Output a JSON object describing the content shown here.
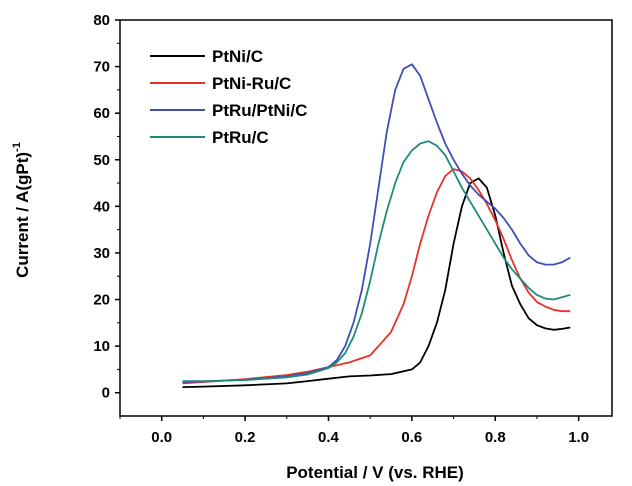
{
  "chart_data": {
    "type": "line",
    "xlabel": "Potential / V (vs. RHE)",
    "ylabel": "Current / A(gPt)",
    "ylabel_superscript": "-1",
    "xlim": [
      -0.1,
      1.08
    ],
    "ylim": [
      -5,
      80
    ],
    "xticks": [
      0.0,
      0.2,
      0.4,
      0.6,
      0.8,
      1.0
    ],
    "xtick_labels": [
      "0.0",
      "0.2",
      "0.4",
      "0.6",
      "0.8",
      "1.0"
    ],
    "yticks": [
      0,
      10,
      20,
      30,
      40,
      50,
      60,
      70,
      80
    ],
    "ytick_labels": [
      "0",
      "10",
      "20",
      "30",
      "40",
      "50",
      "60",
      "70",
      "80"
    ],
    "legend_position": "top-left",
    "grid": false,
    "series": [
      {
        "name": "PtNi/C",
        "color": "#000000",
        "x": [
          0.05,
          0.1,
          0.2,
          0.3,
          0.35,
          0.4,
          0.45,
          0.5,
          0.55,
          0.6,
          0.62,
          0.64,
          0.66,
          0.68,
          0.7,
          0.72,
          0.74,
          0.76,
          0.78,
          0.8,
          0.82,
          0.84,
          0.86,
          0.88,
          0.9,
          0.92,
          0.94,
          0.96,
          0.98
        ],
        "y": [
          1.2,
          1.3,
          1.6,
          2.0,
          2.5,
          3.0,
          3.5,
          3.7,
          4.0,
          5.0,
          6.5,
          10,
          15,
          22,
          32,
          40,
          45,
          46,
          44,
          38,
          30,
          23,
          19,
          16,
          14.5,
          13.8,
          13.5,
          13.7,
          14
        ]
      },
      {
        "name": "PtNi-Ru/C",
        "color": "#e8312a",
        "x": [
          0.05,
          0.1,
          0.2,
          0.3,
          0.35,
          0.4,
          0.45,
          0.5,
          0.55,
          0.58,
          0.6,
          0.62,
          0.64,
          0.66,
          0.68,
          0.7,
          0.72,
          0.74,
          0.76,
          0.78,
          0.8,
          0.82,
          0.84,
          0.86,
          0.88,
          0.9,
          0.92,
          0.94,
          0.96,
          0.98
        ],
        "y": [
          2.0,
          2.3,
          2.9,
          3.8,
          4.5,
          5.5,
          6.5,
          8.0,
          13,
          19,
          25,
          32,
          38,
          43,
          46.5,
          48,
          47.5,
          46,
          43.5,
          40.5,
          37,
          33,
          28.5,
          24.5,
          21.5,
          19.5,
          18.5,
          17.8,
          17.5,
          17.5
        ]
      },
      {
        "name": "PtRu/PtNi/C",
        "color": "#3f4fb5",
        "x": [
          0.05,
          0.1,
          0.2,
          0.3,
          0.35,
          0.4,
          0.42,
          0.44,
          0.46,
          0.48,
          0.5,
          0.52,
          0.54,
          0.56,
          0.58,
          0.6,
          0.62,
          0.64,
          0.66,
          0.68,
          0.7,
          0.72,
          0.74,
          0.76,
          0.78,
          0.8,
          0.82,
          0.84,
          0.86,
          0.88,
          0.9,
          0.92,
          0.94,
          0.96,
          0.98
        ],
        "y": [
          2.3,
          2.4,
          2.8,
          3.5,
          4.2,
          5.5,
          7,
          10,
          15,
          22,
          32,
          44,
          56,
          65,
          69.5,
          70.5,
          68,
          63,
          58,
          53.5,
          50,
          47,
          44.5,
          42.5,
          41,
          39.5,
          37.5,
          35,
          32,
          29.5,
          28,
          27.5,
          27.5,
          28,
          29
        ]
      },
      {
        "name": "PtRu/C",
        "color": "#1f8a7a",
        "x": [
          0.05,
          0.1,
          0.2,
          0.3,
          0.35,
          0.4,
          0.42,
          0.44,
          0.46,
          0.48,
          0.5,
          0.52,
          0.54,
          0.56,
          0.58,
          0.6,
          0.62,
          0.64,
          0.66,
          0.68,
          0.7,
          0.72,
          0.74,
          0.76,
          0.78,
          0.8,
          0.82,
          0.84,
          0.86,
          0.88,
          0.9,
          0.92,
          0.94,
          0.96,
          0.98
        ],
        "y": [
          2.5,
          2.5,
          2.7,
          3.3,
          3.9,
          5.3,
          6.5,
          8.5,
          12,
          17,
          24,
          32,
          39,
          45,
          49.5,
          52,
          53.5,
          54,
          53,
          51,
          47.5,
          44,
          41,
          38,
          35,
          32,
          29,
          26.5,
          24.5,
          22.5,
          21,
          20.2,
          20,
          20.5,
          21
        ]
      }
    ]
  }
}
